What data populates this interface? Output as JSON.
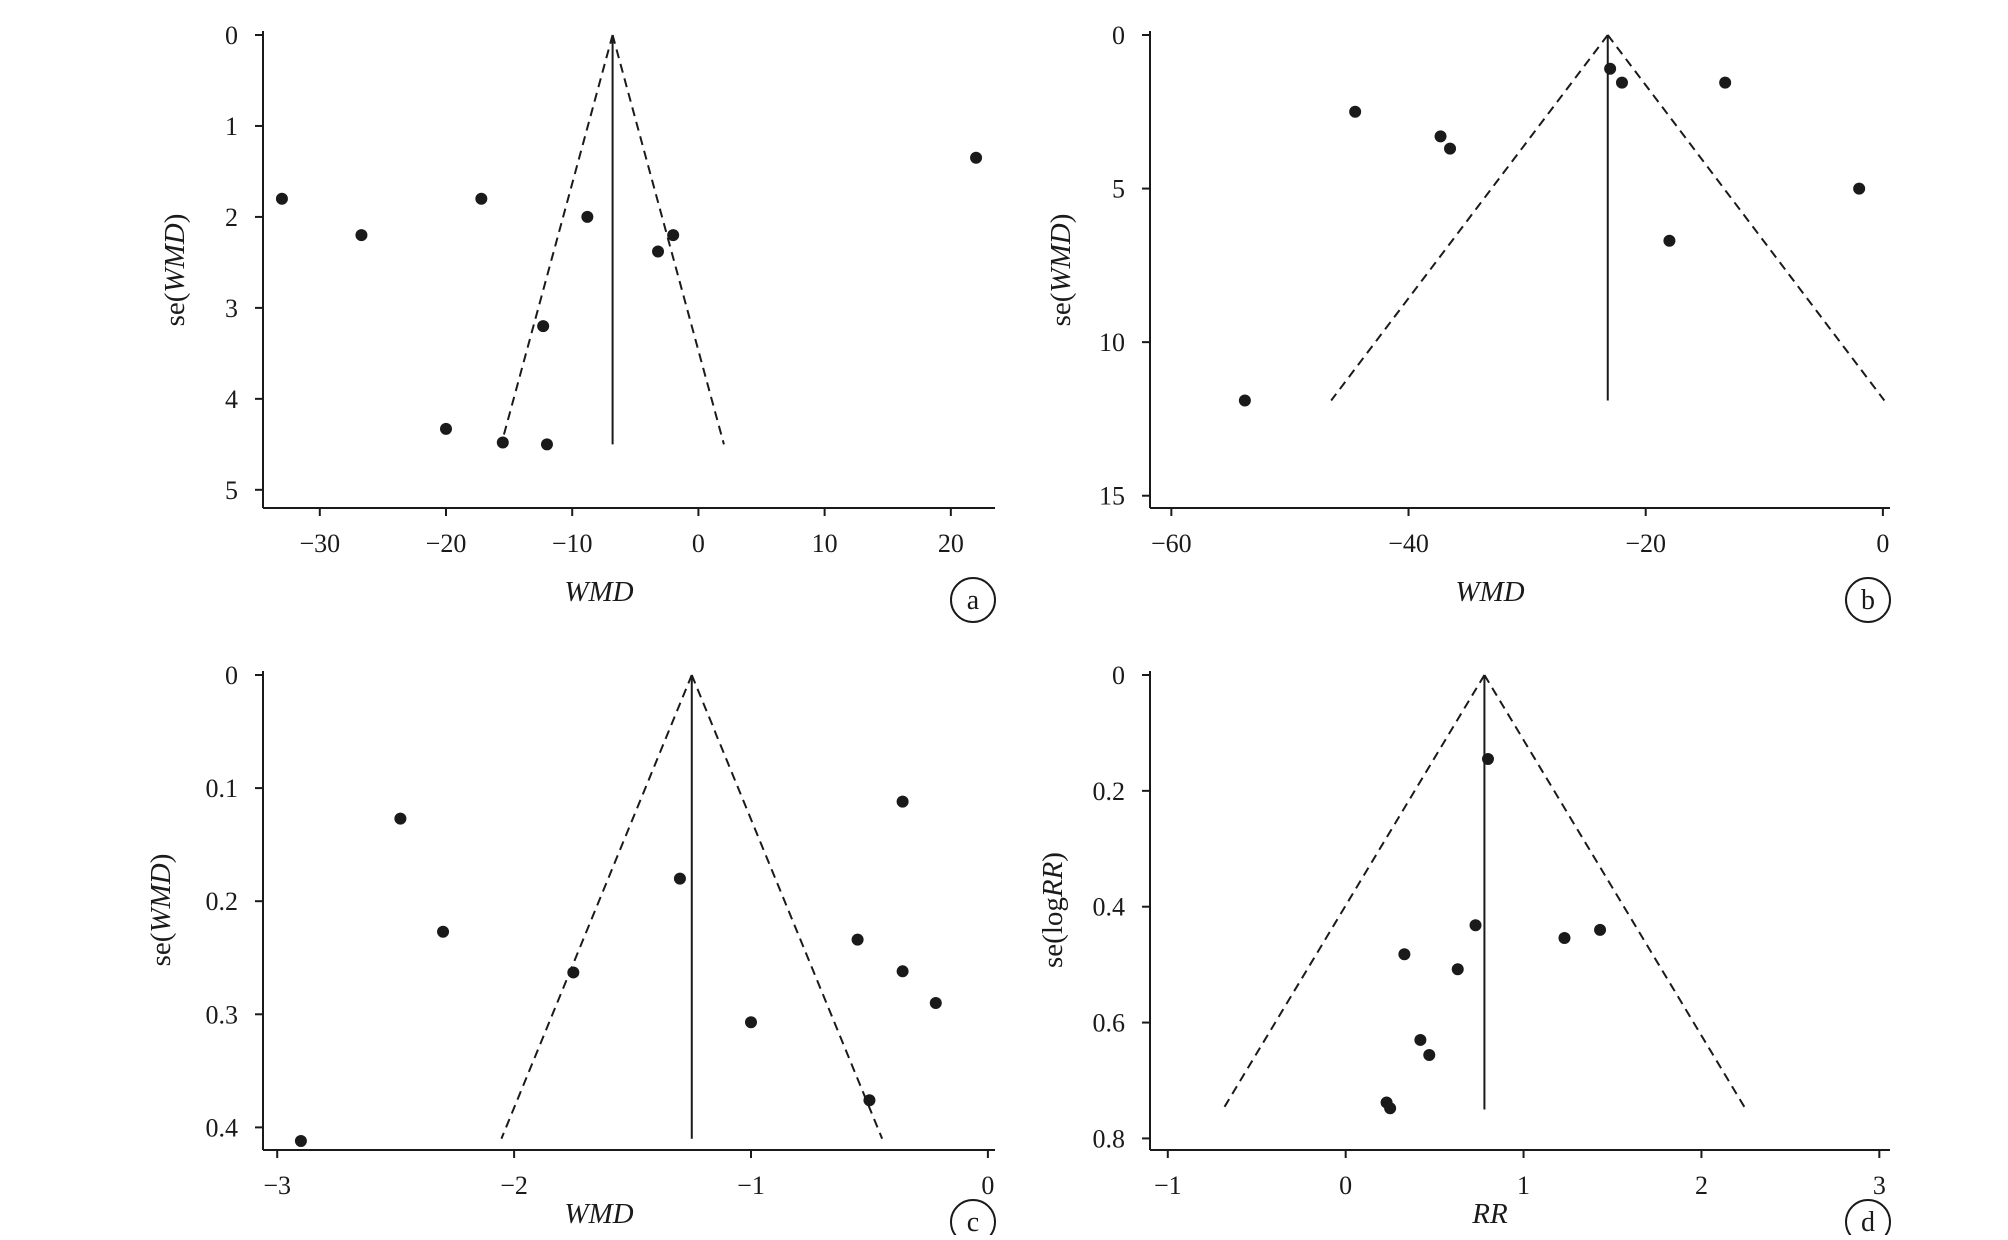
{
  "chart_data": [
    {
      "type": "scatter",
      "panel_label": "a",
      "xlabel_display": "WMD",
      "ylabel_display": "se(WMD)",
      "x_ticks": [
        "−30",
        "−20",
        "−10",
        "0",
        "10",
        "20"
      ],
      "x_tick_values": [
        -30,
        -20,
        -10,
        0,
        10,
        20
      ],
      "y_ticks": [
        "0",
        "1",
        "2",
        "3",
        "4",
        "5"
      ],
      "y_tick_values": [
        0,
        1,
        2,
        3,
        4,
        5
      ],
      "xlim": [
        -34.5,
        23.5
      ],
      "ylim": [
        0,
        5.2
      ],
      "y_inverted": true,
      "grid": false,
      "funnel": {
        "center": -6.8,
        "apex_se": 0,
        "max_se": 4.5
      },
      "points": [
        {
          "x": -33,
          "y": 1.8
        },
        {
          "x": -26.7,
          "y": 2.2
        },
        {
          "x": -17.2,
          "y": 1.8
        },
        {
          "x": -8.8,
          "y": 2.0
        },
        {
          "x": -2,
          "y": 2.2
        },
        {
          "x": -3.2,
          "y": 2.38
        },
        {
          "x": -12.3,
          "y": 3.2
        },
        {
          "x": -20,
          "y": 4.33
        },
        {
          "x": -15.5,
          "y": 4.48
        },
        {
          "x": -12,
          "y": 4.5
        },
        {
          "x": 22,
          "y": 1.35
        }
      ]
    },
    {
      "type": "scatter",
      "panel_label": "b",
      "xlabel_display": "WMD",
      "ylabel_display": "se(WMD)",
      "x_ticks": [
        "−60",
        "−40",
        "−20",
        "0"
      ],
      "x_tick_values": [
        -60,
        -40,
        -20,
        0
      ],
      "y_ticks": [
        "0",
        "5",
        "10",
        "15"
      ],
      "y_tick_values": [
        0,
        5,
        10,
        15
      ],
      "xlim": [
        -61.8,
        0.6
      ],
      "ylim": [
        0,
        15.4
      ],
      "y_inverted": true,
      "grid": false,
      "funnel": {
        "center": -23.2,
        "apex_se": 0,
        "max_se": 11.9
      },
      "points": [
        {
          "x": -44.5,
          "y": 2.5
        },
        {
          "x": -37.3,
          "y": 3.3
        },
        {
          "x": -36.5,
          "y": 3.7
        },
        {
          "x": -23,
          "y": 1.1
        },
        {
          "x": -22,
          "y": 1.55
        },
        {
          "x": -13.3,
          "y": 1.55
        },
        {
          "x": -18,
          "y": 6.7
        },
        {
          "x": -2,
          "y": 5
        },
        {
          "x": -53.8,
          "y": 11.9
        }
      ]
    },
    {
      "type": "scatter",
      "panel_label": "c",
      "xlabel_display": "WMD",
      "ylabel_display": "se(WMD)",
      "x_ticks": [
        "−3",
        "−2",
        "−1",
        "0"
      ],
      "x_tick_values": [
        -3,
        -2,
        -1,
        0
      ],
      "y_ticks": [
        "0",
        "0.1",
        "0.2",
        "0.3",
        "0.4"
      ],
      "y_tick_values": [
        0,
        0.1,
        0.2,
        0.3,
        0.4
      ],
      "xlim": [
        -3.06,
        0.03
      ],
      "ylim": [
        0,
        0.42
      ],
      "y_inverted": true,
      "grid": false,
      "funnel": {
        "center": -1.25,
        "apex_se": 0,
        "max_se": 0.41
      },
      "points": [
        {
          "x": -2.48,
          "y": 0.127
        },
        {
          "x": -2.3,
          "y": 0.227
        },
        {
          "x": -1.75,
          "y": 0.263
        },
        {
          "x": -1.3,
          "y": 0.18
        },
        {
          "x": -1.0,
          "y": 0.307
        },
        {
          "x": -0.55,
          "y": 0.234
        },
        {
          "x": -0.36,
          "y": 0.112
        },
        {
          "x": -0.36,
          "y": 0.262
        },
        {
          "x": -0.22,
          "y": 0.29
        },
        {
          "x": -0.5,
          "y": 0.376
        },
        {
          "x": -2.9,
          "y": 0.412
        }
      ]
    },
    {
      "type": "scatter",
      "panel_label": "d",
      "xlabel_display": "RR",
      "ylabel_display": "se(logRR)",
      "x_ticks": [
        "−1",
        "0",
        "1",
        "2",
        "3"
      ],
      "x_tick_values": [
        -1,
        0,
        1,
        2,
        3
      ],
      "y_ticks": [
        "0",
        "0.2",
        "0.4",
        "0.6",
        "0.8"
      ],
      "y_tick_values": [
        0,
        0.2,
        0.4,
        0.6,
        0.8
      ],
      "xlim": [
        -1.1,
        3.06
      ],
      "ylim": [
        0,
        0.82
      ],
      "y_inverted": true,
      "grid": false,
      "funnel": {
        "center": 0.78,
        "apex_se": 0,
        "max_se": 0.75
      },
      "points": [
        {
          "x": 0.8,
          "y": 0.145
        },
        {
          "x": 0.73,
          "y": 0.432
        },
        {
          "x": 1.23,
          "y": 0.454
        },
        {
          "x": 1.43,
          "y": 0.44
        },
        {
          "x": 0.33,
          "y": 0.482
        },
        {
          "x": 0.63,
          "y": 0.508
        },
        {
          "x": 0.42,
          "y": 0.63
        },
        {
          "x": 0.47,
          "y": 0.656
        },
        {
          "x": 0.23,
          "y": 0.738
        },
        {
          "x": 0.25,
          "y": 0.748
        }
      ]
    }
  ]
}
